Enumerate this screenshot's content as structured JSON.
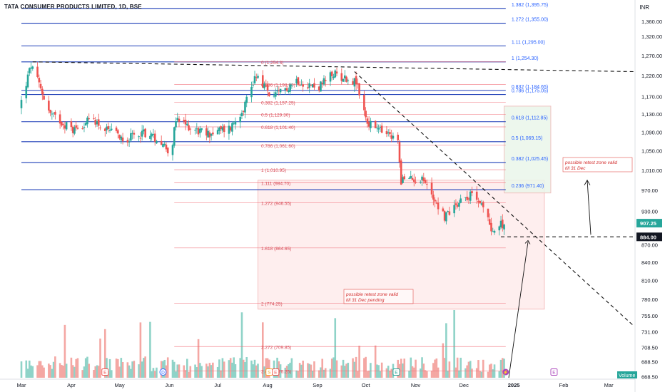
{
  "header": {
    "title": "TATA CONSUMER PRODUCTS LIMITED, 1D, BSE",
    "currency": "INR"
  },
  "price_tags": {
    "last": "907.25",
    "level": "884.00",
    "volume": "Volume"
  },
  "annotations": {
    "top": [
      "possible retest zone valid",
      "till 31 Dec"
    ],
    "bottom": [
      "possible retest zone valid",
      "till 31 Dec pending"
    ]
  },
  "colors": {
    "up": "#26a69a",
    "down": "#ef5350",
    "fib_line": "#1e3fb7",
    "fib_text": "#2962ff",
    "ext_line": "#f06b76",
    "ext_text": "#d64b57",
    "zone_red": "#fde8e8",
    "zone_green": "#eaf6ea",
    "volume_up": "#8fd3c8",
    "volume_down": "#f4a7a3"
  },
  "chart_data": {
    "type": "candlestick",
    "title": "TATA CONSUMER PRODUCTS LIMITED, 1D, BSE",
    "y_axis": {
      "unit": "INR",
      "scale": "log",
      "ylim": [
        665,
        1415
      ],
      "tick_labels": [
        "1,360.00",
        "1,320.00",
        "1,270.00",
        "1,220.00",
        "1,170.00",
        "1,130.00",
        "1,090.00",
        "1,050.00",
        "1,010.00",
        "970.00",
        "930.00",
        "870.00",
        "840.00",
        "810.00",
        "780.00",
        "755.00",
        "731.00",
        "708.50",
        "688.50",
        "668.50"
      ]
    },
    "x_axis": {
      "tick_labels": [
        "Mar",
        "Apr",
        "May",
        "Jun",
        "Jul",
        "Aug",
        "Sep",
        "Oct",
        "Nov",
        "Dec",
        "2025",
        "Feb",
        "Mar"
      ]
    },
    "price_series": {
      "name": "TATA CONSUMER PRODUCTS LIMITED",
      "approx_close_by_month": [
        {
          "date": "2024-03",
          "close": 1225
        },
        {
          "date": "2024-04",
          "close": 1095
        },
        {
          "date": "2024-05",
          "close": 1080
        },
        {
          "date": "2024-06",
          "close": 1105
        },
        {
          "date": "2024-07",
          "close": 1190
        },
        {
          "date": "2024-08",
          "close": 1190
        },
        {
          "date": "2024-09",
          "close": 1215
        },
        {
          "date": "2024-10",
          "close": 1020
        },
        {
          "date": "2024-11",
          "close": 930
        },
        {
          "date": "2024-12",
          "close": 907.25
        }
      ],
      "last_close": 907.25,
      "marked_level": 884.0
    },
    "fibonacci_retracement": [
      {
        "label": "1.382 (1,395.75)",
        "value": 1395.75
      },
      {
        "label": "1.272 (1,355.00)",
        "value": 1355.0
      },
      {
        "label": "1.11 (1,295.00)",
        "value": 1295.0
      },
      {
        "label": "1 (1,254.30)",
        "value": 1254.3
      },
      {
        "label": "0.832 (1,184.65)",
        "value": 1184.65
      },
      {
        "label": "0.786 (1,175.05)",
        "value": 1175.05
      },
      {
        "label": "0.618 (1,112.85)",
        "value": 1112.85
      },
      {
        "label": "0.5 (1,069.15)",
        "value": 1069.15
      },
      {
        "label": "0.382 (1,025.45)",
        "value": 1025.45
      },
      {
        "label": "0.236 (971.40)",
        "value": 971.4
      }
    ],
    "fibonacci_extension": [
      {
        "label": "0 (1,254.3)",
        "value": 1254.3
      },
      {
        "label": "0.236 (1,198.80)",
        "value": 1198.8
      },
      {
        "label": "0.382 (1,157.25)",
        "value": 1157.25
      },
      {
        "label": "0.5 (1,129.30)",
        "value": 1129.3
      },
      {
        "label": "0.618 (1,101.40)",
        "value": 1101.4
      },
      {
        "label": "0.786 (1,061.60)",
        "value": 1061.6
      },
      {
        "label": "1 (1,010.95)",
        "value": 1010.95
      },
      {
        "label": "1.111 (984.70)",
        "value": 984.7
      },
      {
        "label": "1.272 (946.55)",
        "value": 946.55
      },
      {
        "label": "1.618 (864.65)",
        "value": 864.65
      },
      {
        "label": "2 (774.25)",
        "value": 774.25
      },
      {
        "label": "2.272 (709.85)",
        "value": 709.85
      },
      {
        "label": "2.414 (676.25)",
        "value": 676.25
      }
    ],
    "event_markers": [
      "E",
      "D",
      "S",
      "E",
      "E",
      "E"
    ],
    "legend": "none",
    "grid": false
  }
}
